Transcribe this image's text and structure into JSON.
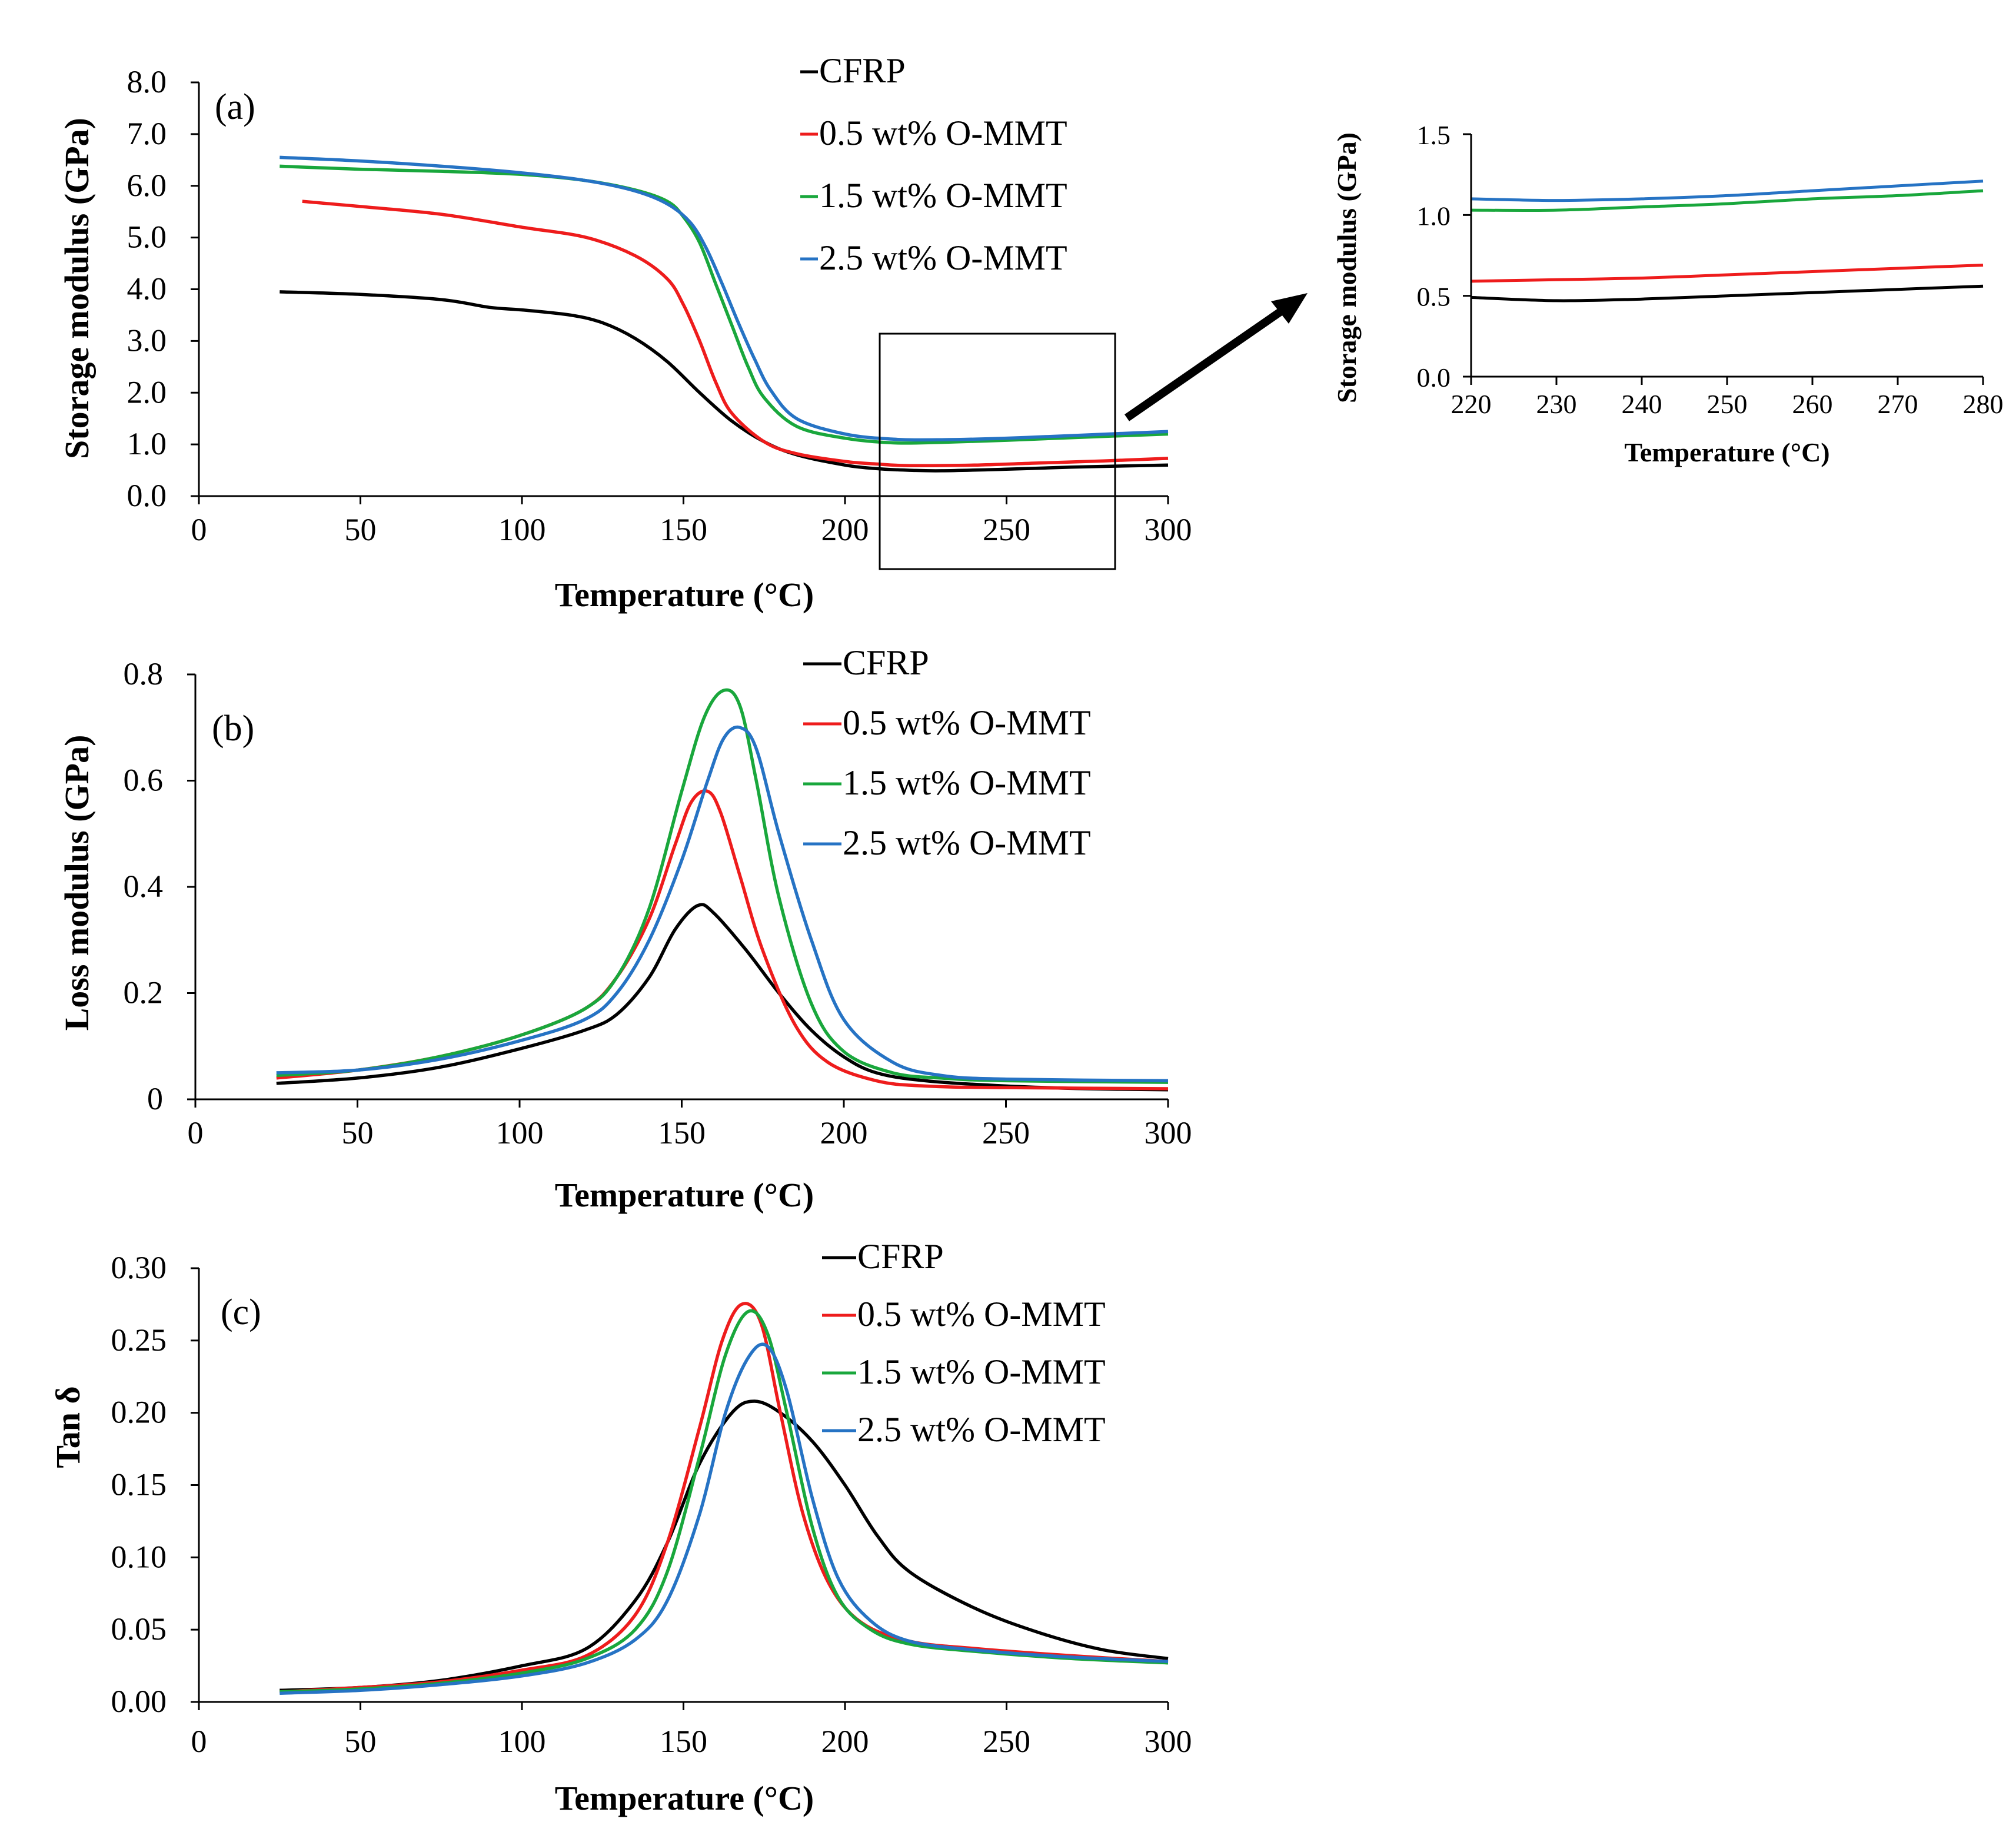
{
  "colors": {
    "CFRP": "#000000",
    "0.5 wt% O-MMT": "#ee1c1c",
    "1.5 wt% O-MMT": "#19a73c",
    "2.5 wt% O-MMT": "#2673c4"
  },
  "chart_data": [
    {
      "id": "a",
      "type": "line",
      "panel_label": "(a)",
      "xlabel": "Temperature (°C)",
      "ylabel": "Storage modulus (GPa)",
      "xlim": [
        0,
        300
      ],
      "ylim": [
        0,
        8
      ],
      "xticks": [
        "0",
        "50",
        "100",
        "150",
        "200",
        "250",
        "300"
      ],
      "yticks": [
        "0.0",
        "1.0",
        "2.0",
        "3.0",
        "4.0",
        "5.0",
        "6.0",
        "7.0",
        "8.0"
      ],
      "legend": [
        "CFRP",
        "0.5 wt% O-MMT",
        "1.5 wt% O-MMT",
        "2.5 wt% O-MMT"
      ],
      "zoom_box": {
        "x": [
          213,
          285
        ],
        "y": [
          -1.4,
          3.15
        ]
      },
      "series": [
        {
          "name": "CFRP",
          "x": [
            25,
            50,
            75,
            90,
            100,
            115,
            125,
            135,
            145,
            155,
            165,
            175,
            185,
            200,
            210,
            220,
            230,
            250,
            270,
            300
          ],
          "y": [
            3.95,
            3.9,
            3.8,
            3.65,
            3.6,
            3.5,
            3.35,
            3.05,
            2.6,
            2.0,
            1.45,
            1.05,
            0.8,
            0.6,
            0.53,
            0.5,
            0.49,
            0.52,
            0.56,
            0.6
          ]
        },
        {
          "name": "0.5 wt% O-MMT",
          "x": [
            32,
            50,
            75,
            100,
            120,
            135,
            145,
            150,
            155,
            160,
            165,
            175,
            185,
            200,
            210,
            220,
            240,
            260,
            280,
            300
          ],
          "y": [
            5.7,
            5.6,
            5.45,
            5.2,
            5.0,
            4.65,
            4.2,
            3.7,
            3.0,
            2.2,
            1.6,
            1.05,
            0.82,
            0.67,
            0.62,
            0.59,
            0.6,
            0.64,
            0.68,
            0.73
          ]
        },
        {
          "name": "1.5 wt% O-MMT",
          "x": [
            25,
            50,
            75,
            100,
            120,
            135,
            145,
            150,
            155,
            160,
            165,
            170,
            175,
            185,
            200,
            215,
            230,
            250,
            270,
            300
          ],
          "y": [
            6.38,
            6.32,
            6.28,
            6.22,
            6.1,
            5.92,
            5.7,
            5.4,
            4.9,
            4.1,
            3.3,
            2.5,
            1.9,
            1.35,
            1.12,
            1.03,
            1.04,
            1.08,
            1.13,
            1.2
          ]
        },
        {
          "name": "2.5 wt% O-MMT",
          "x": [
            25,
            50,
            75,
            100,
            120,
            135,
            145,
            152,
            157,
            162,
            167,
            172,
            177,
            185,
            200,
            215,
            230,
            250,
            270,
            300
          ],
          "y": [
            6.55,
            6.48,
            6.38,
            6.25,
            6.1,
            5.9,
            5.65,
            5.3,
            4.8,
            4.1,
            3.35,
            2.65,
            2.05,
            1.5,
            1.2,
            1.1,
            1.09,
            1.12,
            1.17,
            1.25
          ]
        }
      ]
    },
    {
      "id": "a-zoom",
      "type": "line",
      "xlabel": "Temperature (°C)",
      "ylabel": "Storage modulus (GPa)",
      "xlim": [
        220,
        280
      ],
      "ylim": [
        0,
        1.5
      ],
      "xticks": [
        "220",
        "230",
        "240",
        "250",
        "260",
        "270",
        "280"
      ],
      "yticks": [
        "0.0",
        "0.5",
        "1.0",
        "1.5"
      ],
      "series": [
        {
          "name": "CFRP",
          "x": [
            220,
            230,
            240,
            250,
            260,
            270,
            280
          ],
          "y": [
            0.49,
            0.47,
            0.48,
            0.5,
            0.52,
            0.54,
            0.56
          ]
        },
        {
          "name": "0.5 wt% O-MMT",
          "x": [
            220,
            230,
            240,
            250,
            260,
            270,
            280
          ],
          "y": [
            0.59,
            0.6,
            0.61,
            0.63,
            0.65,
            0.67,
            0.69
          ]
        },
        {
          "name": "1.5 wt% O-MMT",
          "x": [
            220,
            230,
            240,
            250,
            260,
            270,
            280
          ],
          "y": [
            1.03,
            1.03,
            1.05,
            1.07,
            1.1,
            1.12,
            1.15
          ]
        },
        {
          "name": "2.5 wt% O-MMT",
          "x": [
            220,
            230,
            240,
            250,
            260,
            270,
            280
          ],
          "y": [
            1.1,
            1.09,
            1.1,
            1.12,
            1.15,
            1.18,
            1.21
          ]
        }
      ]
    },
    {
      "id": "b",
      "type": "line",
      "panel_label": "(b)",
      "xlabel": "Temperature (°C)",
      "ylabel": "Loss modulus (GPa)",
      "xlim": [
        0,
        300
      ],
      "ylim": [
        0,
        0.8
      ],
      "xticks": [
        "0",
        "50",
        "100",
        "150",
        "200",
        "250",
        "300"
      ],
      "yticks": [
        "0",
        "0.2",
        "0.4",
        "0.6",
        "0.8"
      ],
      "legend": [
        "CFRP",
        "0.5 wt% O-MMT",
        "1.5 wt% O-MMT",
        "2.5 wt% O-MMT"
      ],
      "series": [
        {
          "name": "CFRP",
          "x": [
            25,
            50,
            75,
            100,
            120,
            130,
            140,
            148,
            155,
            160,
            170,
            180,
            190,
            200,
            210,
            225,
            250,
            275,
            300
          ],
          "y": [
            0.03,
            0.04,
            0.06,
            0.095,
            0.13,
            0.16,
            0.23,
            0.32,
            0.365,
            0.35,
            0.28,
            0.2,
            0.13,
            0.08,
            0.05,
            0.035,
            0.025,
            0.02,
            0.018
          ]
        },
        {
          "name": "0.5 wt% O-MMT",
          "x": [
            25,
            50,
            75,
            100,
            120,
            130,
            140,
            148,
            153,
            158,
            162,
            168,
            175,
            185,
            195,
            210,
            225,
            250,
            300
          ],
          "y": [
            0.04,
            0.055,
            0.08,
            0.12,
            0.17,
            0.23,
            0.34,
            0.48,
            0.56,
            0.58,
            0.54,
            0.42,
            0.28,
            0.14,
            0.07,
            0.035,
            0.025,
            0.022,
            0.02
          ]
        },
        {
          "name": "1.5 wt% O-MMT",
          "x": [
            25,
            50,
            75,
            100,
            120,
            130,
            140,
            150,
            157,
            163,
            168,
            173,
            180,
            190,
            200,
            215,
            230,
            250,
            300
          ],
          "y": [
            0.045,
            0.055,
            0.08,
            0.12,
            0.17,
            0.23,
            0.36,
            0.58,
            0.72,
            0.77,
            0.74,
            0.6,
            0.38,
            0.18,
            0.09,
            0.05,
            0.04,
            0.035,
            0.032
          ]
        },
        {
          "name": "2.5 wt% O-MMT",
          "x": [
            25,
            50,
            75,
            100,
            120,
            130,
            140,
            150,
            158,
            163,
            168,
            173,
            180,
            190,
            200,
            215,
            230,
            250,
            300
          ],
          "y": [
            0.05,
            0.055,
            0.075,
            0.11,
            0.15,
            0.2,
            0.3,
            0.45,
            0.6,
            0.68,
            0.7,
            0.66,
            0.5,
            0.3,
            0.15,
            0.07,
            0.045,
            0.038,
            0.035
          ]
        }
      ]
    },
    {
      "id": "c",
      "type": "line",
      "panel_label": "(c)",
      "xlabel": "Temperature (°C)",
      "ylabel": "Tan δ",
      "xlim": [
        0,
        300
      ],
      "ylim": [
        0,
        0.3
      ],
      "xticks": [
        "0",
        "50",
        "100",
        "150",
        "200",
        "250",
        "300"
      ],
      "yticks": [
        "0.00",
        "0.05",
        "0.10",
        "0.15",
        "0.20",
        "0.25",
        "0.30"
      ],
      "legend": [
        "CFRP",
        "0.5 wt% O-MMT",
        "1.5 wt% O-MMT",
        "2.5 wt% O-MMT"
      ],
      "series": [
        {
          "name": "CFRP",
          "x": [
            25,
            50,
            75,
            100,
            120,
            135,
            145,
            155,
            165,
            172,
            180,
            190,
            200,
            210,
            220,
            240,
            260,
            280,
            300
          ],
          "y": [
            0.008,
            0.01,
            0.015,
            0.025,
            0.037,
            0.07,
            0.11,
            0.165,
            0.2,
            0.208,
            0.2,
            0.18,
            0.15,
            0.115,
            0.09,
            0.065,
            0.048,
            0.036,
            0.03
          ]
        },
        {
          "name": "0.5 wt% O-MMT",
          "x": [
            25,
            50,
            75,
            100,
            120,
            135,
            145,
            155,
            162,
            168,
            174,
            180,
            187,
            195,
            205,
            220,
            240,
            270,
            300
          ],
          "y": [
            0.007,
            0.01,
            0.014,
            0.022,
            0.032,
            0.06,
            0.11,
            0.19,
            0.25,
            0.275,
            0.262,
            0.2,
            0.13,
            0.082,
            0.055,
            0.042,
            0.037,
            0.032,
            0.028
          ]
        },
        {
          "name": "1.5 wt% O-MMT",
          "x": [
            25,
            50,
            75,
            100,
            120,
            135,
            145,
            155,
            163,
            170,
            176,
            182,
            190,
            198,
            208,
            220,
            240,
            270,
            300
          ],
          "y": [
            0.007,
            0.009,
            0.013,
            0.02,
            0.03,
            0.05,
            0.09,
            0.17,
            0.24,
            0.27,
            0.255,
            0.2,
            0.12,
            0.072,
            0.05,
            0.04,
            0.035,
            0.03,
            0.027
          ]
        },
        {
          "name": "2.5 wt% O-MMT",
          "x": [
            25,
            50,
            75,
            100,
            120,
            135,
            145,
            155,
            163,
            170,
            176,
            182,
            190,
            198,
            208,
            220,
            240,
            270,
            300
          ],
          "y": [
            0.006,
            0.008,
            0.012,
            0.018,
            0.027,
            0.043,
            0.07,
            0.13,
            0.2,
            0.238,
            0.246,
            0.215,
            0.14,
            0.085,
            0.056,
            0.042,
            0.036,
            0.031,
            0.028
          ]
        }
      ]
    }
  ]
}
